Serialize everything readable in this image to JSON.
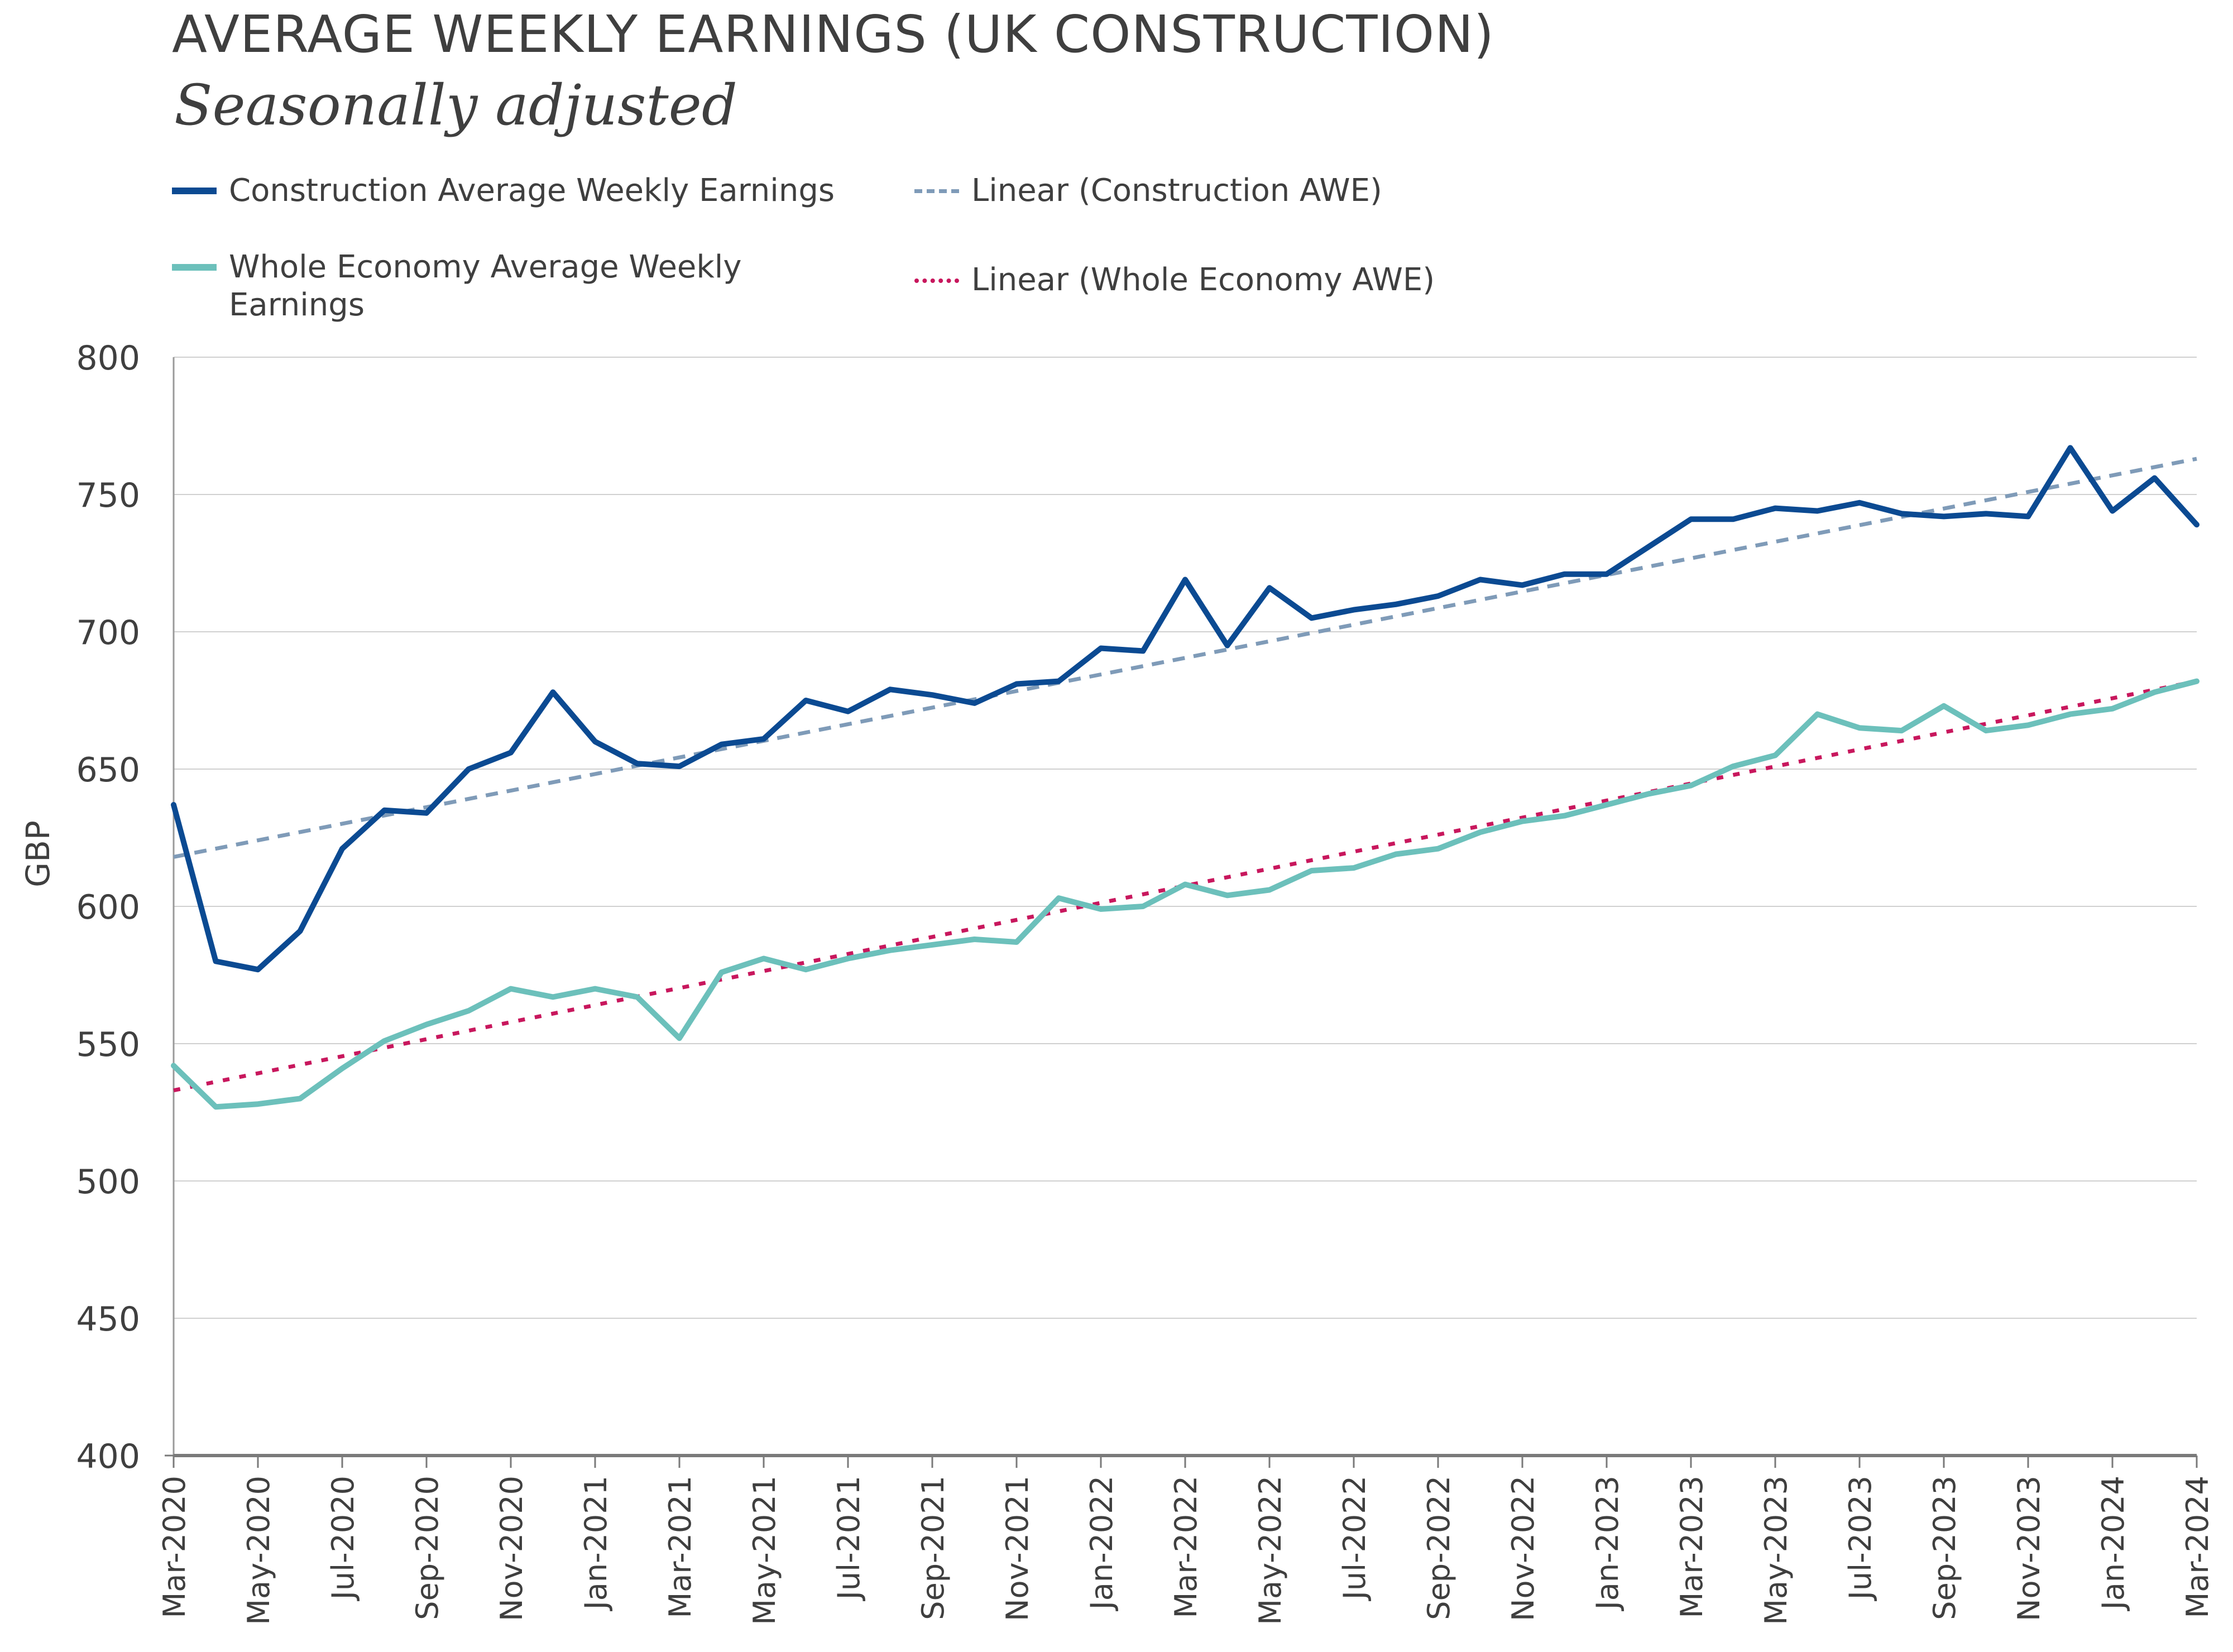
{
  "chart_data": {
    "type": "line",
    "title": "AVERAGE WEEKLY EARNINGS (UK CONSTRUCTION)",
    "subtitle": "Seasonally adjusted",
    "ylabel": "GBP",
    "xlabel": "",
    "ylim": [
      400,
      800
    ],
    "yticks": [
      400,
      450,
      500,
      550,
      600,
      650,
      700,
      750,
      800
    ],
    "grid": true,
    "legend_position": "top",
    "x": [
      "Mar-2020",
      "Apr-2020",
      "May-2020",
      "Jun-2020",
      "Jul-2020",
      "Aug-2020",
      "Sep-2020",
      "Oct-2020",
      "Nov-2020",
      "Dec-2020",
      "Jan-2021",
      "Feb-2021",
      "Mar-2021",
      "Apr-2021",
      "May-2021",
      "Jun-2021",
      "Jul-2021",
      "Aug-2021",
      "Sep-2021",
      "Oct-2021",
      "Nov-2021",
      "Dec-2021",
      "Jan-2022",
      "Feb-2022",
      "Mar-2022",
      "Apr-2022",
      "May-2022",
      "Jun-2022",
      "Jul-2022",
      "Aug-2022",
      "Sep-2022",
      "Oct-2022",
      "Nov-2022",
      "Dec-2022",
      "Jan-2023",
      "Feb-2023",
      "Mar-2023",
      "Apr-2023",
      "May-2023",
      "Jun-2023",
      "Jul-2023",
      "Aug-2023",
      "Sep-2023",
      "Oct-2023",
      "Nov-2023",
      "Dec-2023",
      "Jan-2024",
      "Feb-2024",
      "Mar-2024"
    ],
    "x_tick_labels": [
      "Mar-2020",
      "May-2020",
      "Jul-2020",
      "Sep-2020",
      "Nov-2020",
      "Jan-2021",
      "Mar-2021",
      "May-2021",
      "Jul-2021",
      "Sep-2021",
      "Nov-2021",
      "Jan-2022",
      "Mar-2022",
      "May-2022",
      "Jul-2022",
      "Sep-2022",
      "Nov-2022",
      "Jan-2023",
      "Mar-2023",
      "May-2023",
      "Jul-2023",
      "Sep-2023",
      "Nov-2023",
      "Jan-2024",
      "Mar-2024"
    ],
    "series": [
      {
        "name": "Construction Average Weekly Earnings",
        "color": "#0b4a92",
        "style": "solid",
        "values": [
          637,
          580,
          577,
          591,
          621,
          635,
          634,
          650,
          656,
          678,
          660,
          652,
          651,
          659,
          661,
          675,
          671,
          679,
          677,
          674,
          681,
          682,
          694,
          693,
          719,
          695,
          716,
          705,
          708,
          710,
          713,
          719,
          717,
          721,
          721,
          731,
          741,
          741,
          745,
          744,
          747,
          743,
          742,
          743,
          742,
          767,
          744,
          756,
          739
        ]
      },
      {
        "name": "Whole Economy Average Weekly Earnings",
        "color": "#6cc0bb",
        "style": "solid",
        "values": [
          542,
          527,
          528,
          530,
          541,
          551,
          557,
          562,
          570,
          567,
          570,
          567,
          552,
          576,
          581,
          577,
          581,
          584,
          586,
          588,
          587,
          603,
          599,
          600,
          608,
          604,
          606,
          613,
          614,
          619,
          621,
          627,
          631,
          633,
          637,
          641,
          644,
          651,
          655,
          670,
          665,
          664,
          673,
          664,
          666,
          670,
          672,
          678,
          682
        ]
      },
      {
        "name": "Linear (Construction AWE)",
        "color": "#7f9bb8",
        "style": "dashed",
        "trend": [
          618,
          763
        ]
      },
      {
        "name": "Linear (Whole Economy AWE)",
        "color": "#c8175d",
        "style": "dotted",
        "trend": [
          533,
          682
        ]
      }
    ]
  }
}
